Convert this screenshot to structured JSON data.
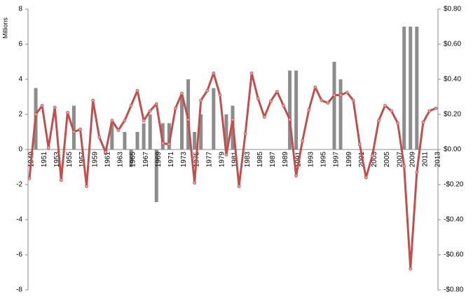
{
  "chart_data": {
    "type": "bar-line",
    "y_label": "Millions",
    "categories": [
      "1949",
      null,
      "1951",
      null,
      "1953",
      null,
      "1955",
      null,
      "1957",
      null,
      "1959",
      null,
      "1961",
      null,
      "1963",
      null,
      "1965",
      null,
      "1967",
      null,
      "1969",
      null,
      "1971",
      null,
      "1973",
      null,
      "1975",
      null,
      "1977",
      null,
      "1979",
      null,
      "1981",
      null,
      "1983",
      null,
      "1985",
      null,
      "1987",
      null,
      "1989",
      null,
      "1991",
      null,
      "1993",
      null,
      "1995",
      null,
      "1997",
      null,
      "1999",
      null,
      "2001",
      null,
      "2003",
      null,
      "2005",
      null,
      "2007",
      null,
      "2009",
      null,
      "2011",
      null,
      "2013"
    ],
    "series": [
      {
        "type": "bar",
        "color": "#8c8c8c",
        "values": [
          0,
          3.5,
          0,
          0,
          0,
          0,
          0,
          2.5,
          0,
          0,
          0,
          0,
          -0.3,
          1.5,
          0,
          1.0,
          -1.0,
          1.0,
          1.5,
          2.0,
          -3.0,
          1.5,
          1.5,
          0,
          3.0,
          4.0,
          1.0,
          2.0,
          0,
          3.5,
          0,
          2.0,
          2.5,
          0,
          0,
          0,
          0,
          0,
          0,
          0,
          0,
          4.5,
          4.5,
          0,
          0,
          0,
          0,
          0,
          5.0,
          4.0,
          0,
          0,
          0,
          0,
          0,
          0,
          0,
          0,
          0,
          7.0,
          7.0,
          7.0,
          0,
          0,
          0
        ]
      },
      {
        "type": "line",
        "axis": "y2",
        "color": "#c0504d",
        "values": [
          -0.165,
          0.2,
          0.25,
          0.01,
          0.24,
          -0.175,
          0.21,
          0.1,
          0.115,
          -0.21,
          0.28,
          0.07,
          -0.015,
          0.165,
          0.11,
          0.165,
          0.25,
          0.335,
          0.165,
          0.22,
          0.26,
          0.035,
          0.03,
          0.235,
          0.32,
          0.17,
          -0.19,
          0.28,
          0.335,
          0.435,
          0.31,
          -0.03,
          0.17,
          -0.21,
          0.09,
          0.435,
          0.29,
          0.185,
          0.275,
          0.33,
          0.25,
          0.17,
          -0.15,
          0.05,
          0.225,
          0.355,
          0.28,
          0.265,
          0.31,
          0.31,
          0.325,
          0.28,
          0.03,
          -0.16,
          -0.035,
          0.165,
          0.25,
          0.22,
          0.15,
          -0.095,
          -0.68,
          -0.13,
          0.155,
          0.22,
          0.235
        ]
      }
    ],
    "ylim": [
      -8,
      8
    ],
    "yticks": [
      -8,
      -6,
      -4,
      -2,
      0,
      2,
      4,
      6,
      8
    ],
    "y2lim": [
      -0.8,
      0.8
    ],
    "y2ticks": [
      {
        "value": -0.8,
        "label": "-$0.80"
      },
      {
        "value": -0.6,
        "label": "-$0.60"
      },
      {
        "value": -0.4,
        "label": "-$0.40"
      },
      {
        "value": -0.2,
        "label": "-$0.20"
      },
      {
        "value": 0,
        "label": "$0.00"
      },
      {
        "value": 0.2,
        "label": "$0.20"
      },
      {
        "value": 0.4,
        "label": "$0.40"
      },
      {
        "value": 0.6,
        "label": "$0.60"
      },
      {
        "value": 0.8,
        "label": "$0.80"
      }
    ]
  }
}
